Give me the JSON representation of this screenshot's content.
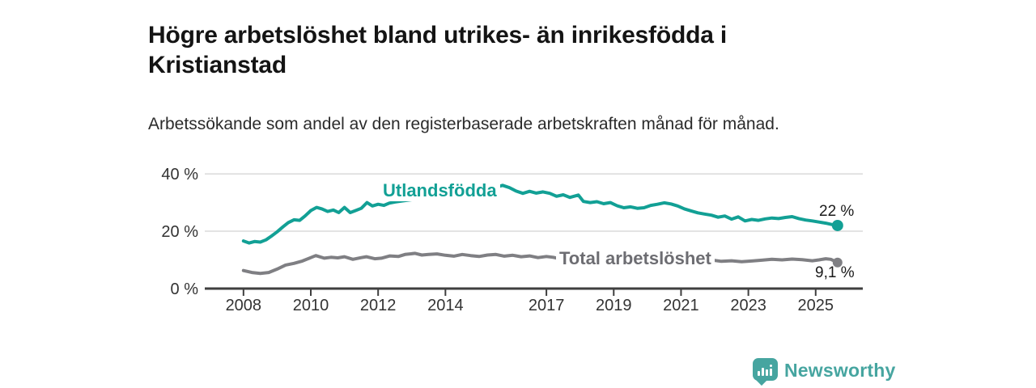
{
  "title": "Högre arbetslöshet bland utrikes- än inrikesfödda i Kristianstad",
  "subtitle": "Arbetssökande som andel av den registerbaserade arbetskraften månad för månad.",
  "branding": {
    "name": "Newsworthy",
    "icon": "bar-chart-bubble-icon",
    "color": "#46a5a0"
  },
  "colors": {
    "accent_teal": "#12a095",
    "line_gray": "#7f7f83",
    "axis": "#3f3f3f",
    "grid": "#dadada"
  },
  "chart_data": {
    "type": "line",
    "title": "Högre arbetslöshet bland utrikes- än inrikesfödda i Kristianstad",
    "xlabel": "",
    "ylabel": "",
    "grid": "horizontal",
    "legend_position": "inline-labels",
    "xlim": [
      2006.85,
      2026.4
    ],
    "ylim": [
      0,
      42
    ],
    "x_tick_labels": [
      "2008",
      "2010",
      "2012",
      "2014",
      "2017",
      "2019",
      "2021",
      "2023",
      "2025"
    ],
    "x_ticks": [
      2008,
      2010,
      2012,
      2014,
      2017,
      2019,
      2021,
      2023,
      2025
    ],
    "y_ticks": [
      0,
      20,
      40
    ],
    "y_tick_labels": [
      "0 %",
      "20 %",
      "40 %"
    ],
    "series": [
      {
        "name": "Utlandsfödda",
        "color": "#12a095",
        "end_label": "22 %",
        "end_value": 22,
        "points": [
          [
            2008.0,
            16.6
          ],
          [
            2008.17,
            15.9
          ],
          [
            2008.33,
            16.4
          ],
          [
            2008.5,
            16.2
          ],
          [
            2008.67,
            17.0
          ],
          [
            2008.83,
            18.3
          ],
          [
            2009.0,
            19.8
          ],
          [
            2009.17,
            21.5
          ],
          [
            2009.33,
            23.0
          ],
          [
            2009.5,
            24.0
          ],
          [
            2009.67,
            23.8
          ],
          [
            2009.83,
            25.3
          ],
          [
            2010.0,
            27.2
          ],
          [
            2010.17,
            28.3
          ],
          [
            2010.33,
            27.8
          ],
          [
            2010.5,
            26.9
          ],
          [
            2010.67,
            27.4
          ],
          [
            2010.83,
            26.5
          ],
          [
            2011.0,
            28.3
          ],
          [
            2011.17,
            26.5
          ],
          [
            2011.33,
            27.2
          ],
          [
            2011.5,
            28.0
          ],
          [
            2011.67,
            30.0
          ],
          [
            2011.83,
            28.8
          ],
          [
            2012.0,
            29.4
          ],
          [
            2012.17,
            29.0
          ],
          [
            2012.33,
            29.8
          ],
          [
            2012.5,
            30.2
          ],
          [
            2012.75,
            30.6
          ],
          [
            2013.0,
            31.0
          ],
          [
            2013.5,
            31.8
          ],
          [
            2014.0,
            32.6
          ],
          [
            2014.5,
            33.4
          ],
          [
            2015.0,
            34.2
          ],
          [
            2015.4,
            35.0
          ],
          [
            2015.7,
            36.0
          ],
          [
            2015.9,
            35.2
          ],
          [
            2016.1,
            34.0
          ],
          [
            2016.3,
            33.2
          ],
          [
            2016.5,
            33.9
          ],
          [
            2016.7,
            33.3
          ],
          [
            2016.9,
            33.7
          ],
          [
            2017.1,
            33.2
          ],
          [
            2017.3,
            32.2
          ],
          [
            2017.5,
            32.7
          ],
          [
            2017.7,
            31.8
          ],
          [
            2017.95,
            32.6
          ],
          [
            2018.1,
            30.4
          ],
          [
            2018.3,
            30.0
          ],
          [
            2018.5,
            30.3
          ],
          [
            2018.7,
            29.6
          ],
          [
            2018.9,
            30.0
          ],
          [
            2019.1,
            28.9
          ],
          [
            2019.3,
            28.2
          ],
          [
            2019.5,
            28.5
          ],
          [
            2019.7,
            28.0
          ],
          [
            2019.9,
            28.2
          ],
          [
            2020.1,
            29.0
          ],
          [
            2020.3,
            29.4
          ],
          [
            2020.5,
            29.9
          ],
          [
            2020.7,
            29.5
          ],
          [
            2020.9,
            28.8
          ],
          [
            2021.1,
            27.8
          ],
          [
            2021.3,
            27.1
          ],
          [
            2021.5,
            26.4
          ],
          [
            2021.7,
            26.0
          ],
          [
            2021.9,
            25.6
          ],
          [
            2022.1,
            24.9
          ],
          [
            2022.3,
            25.3
          ],
          [
            2022.5,
            24.2
          ],
          [
            2022.7,
            25.0
          ],
          [
            2022.9,
            23.6
          ],
          [
            2023.1,
            24.1
          ],
          [
            2023.3,
            23.8
          ],
          [
            2023.5,
            24.3
          ],
          [
            2023.7,
            24.6
          ],
          [
            2023.9,
            24.4
          ],
          [
            2024.1,
            24.8
          ],
          [
            2024.3,
            25.1
          ],
          [
            2024.5,
            24.4
          ],
          [
            2024.7,
            23.9
          ],
          [
            2024.9,
            23.6
          ],
          [
            2025.1,
            23.2
          ],
          [
            2025.3,
            22.8
          ],
          [
            2025.5,
            22.3
          ],
          [
            2025.65,
            22.0
          ]
        ]
      },
      {
        "name": "Total arbetslöshet",
        "color": "#7f7f83",
        "end_label": "9,1 %",
        "end_value": 9.1,
        "points": [
          [
            2008.0,
            6.3
          ],
          [
            2008.25,
            5.6
          ],
          [
            2008.5,
            5.3
          ],
          [
            2008.75,
            5.6
          ],
          [
            2009.0,
            6.8
          ],
          [
            2009.25,
            8.2
          ],
          [
            2009.5,
            8.8
          ],
          [
            2009.75,
            9.6
          ],
          [
            2010.0,
            10.8
          ],
          [
            2010.15,
            11.5
          ],
          [
            2010.4,
            10.6
          ],
          [
            2010.6,
            10.9
          ],
          [
            2010.8,
            10.7
          ],
          [
            2011.0,
            11.1
          ],
          [
            2011.25,
            10.2
          ],
          [
            2011.5,
            10.8
          ],
          [
            2011.65,
            11.1
          ],
          [
            2011.9,
            10.4
          ],
          [
            2012.1,
            10.6
          ],
          [
            2012.35,
            11.4
          ],
          [
            2012.6,
            11.2
          ],
          [
            2012.8,
            11.9
          ],
          [
            2013.1,
            12.3
          ],
          [
            2013.3,
            11.7
          ],
          [
            2013.5,
            11.9
          ],
          [
            2013.75,
            12.1
          ],
          [
            2014.0,
            11.6
          ],
          [
            2014.25,
            11.3
          ],
          [
            2014.5,
            11.9
          ],
          [
            2014.75,
            11.5
          ],
          [
            2015.0,
            11.2
          ],
          [
            2015.25,
            11.7
          ],
          [
            2015.5,
            11.9
          ],
          [
            2015.75,
            11.3
          ],
          [
            2016.0,
            11.6
          ],
          [
            2016.25,
            11.1
          ],
          [
            2016.5,
            11.4
          ],
          [
            2016.75,
            10.8
          ],
          [
            2017.0,
            11.2
          ],
          [
            2017.2,
            10.9
          ],
          [
            2017.4,
            10.4
          ],
          [
            2017.7,
            10.6
          ],
          [
            2018.0,
            10.2
          ],
          [
            2018.5,
            10.4
          ],
          [
            2019.0,
            10.0
          ],
          [
            2019.5,
            10.3
          ],
          [
            2020.0,
            10.8
          ],
          [
            2020.5,
            11.2
          ],
          [
            2021.0,
            10.9
          ],
          [
            2021.5,
            10.3
          ],
          [
            2022.0,
            9.8
          ],
          [
            2022.2,
            9.5
          ],
          [
            2022.5,
            9.7
          ],
          [
            2022.8,
            9.4
          ],
          [
            2023.1,
            9.6
          ],
          [
            2023.4,
            9.9
          ],
          [
            2023.7,
            10.2
          ],
          [
            2024.0,
            10.0
          ],
          [
            2024.3,
            10.3
          ],
          [
            2024.6,
            10.1
          ],
          [
            2024.9,
            9.7
          ],
          [
            2025.1,
            10.0
          ],
          [
            2025.3,
            10.4
          ],
          [
            2025.45,
            10.2
          ],
          [
            2025.65,
            9.1
          ]
        ]
      }
    ]
  }
}
